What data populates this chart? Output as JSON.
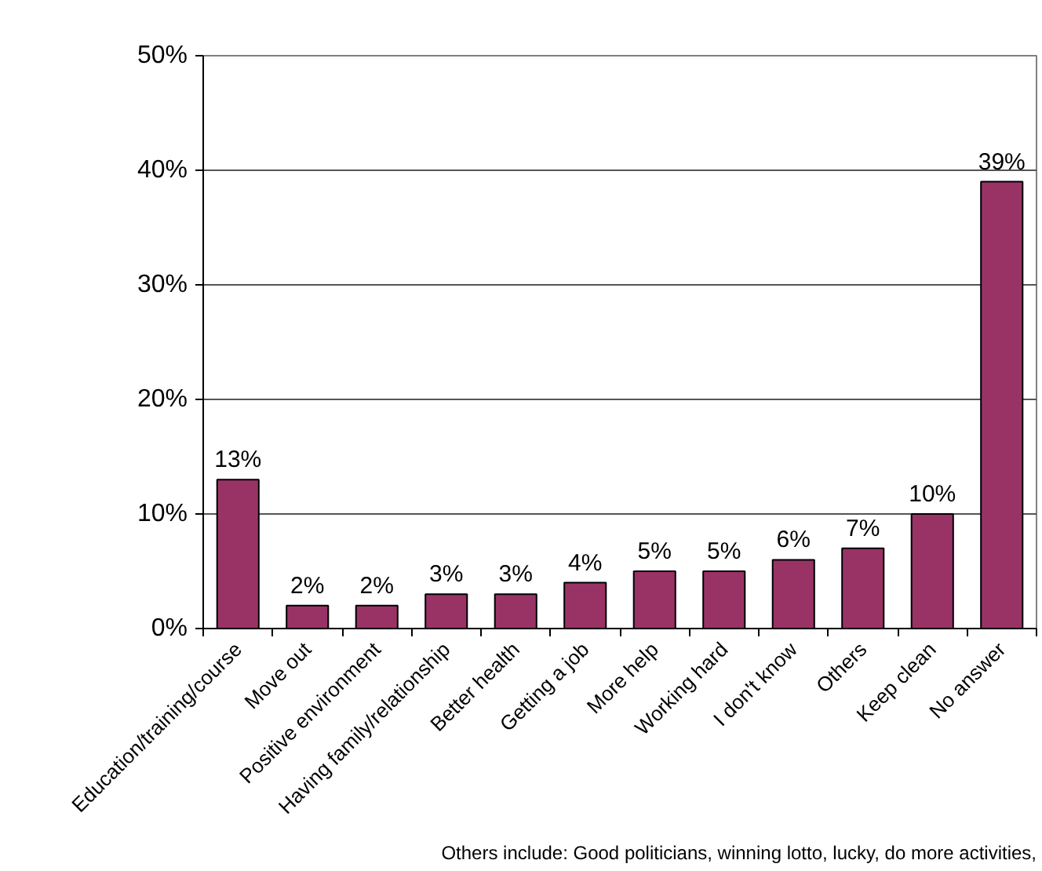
{
  "chart_data": {
    "type": "bar",
    "categories": [
      "Education/training/course",
      "Move out",
      "Positive environment",
      "Having family/relationship",
      "Better health",
      "Getting a job",
      "More help",
      "Working hard",
      "I don't know",
      "Others",
      "Keep clean",
      "No answer"
    ],
    "values": [
      13,
      2,
      2,
      3,
      3,
      4,
      5,
      5,
      6,
      7,
      10,
      39
    ],
    "value_labels": [
      "13%",
      "2%",
      "2%",
      "3%",
      "3%",
      "4%",
      "5%",
      "5%",
      "6%",
      "7%",
      "10%",
      "39%"
    ],
    "color": "#993366",
    "ylim": [
      0,
      50
    ],
    "yticks": [
      {
        "value": 0,
        "label": "0%"
      },
      {
        "value": 10,
        "label": "10%"
      },
      {
        "value": 20,
        "label": "20%"
      },
      {
        "value": 30,
        "label": "30%"
      },
      {
        "value": 40,
        "label": "40%"
      },
      {
        "value": 50,
        "label": "50%"
      }
    ],
    "grid": "y",
    "annotations": [
      "Others include: Good politicians, winning lotto, lucky, do more activities,"
    ]
  }
}
